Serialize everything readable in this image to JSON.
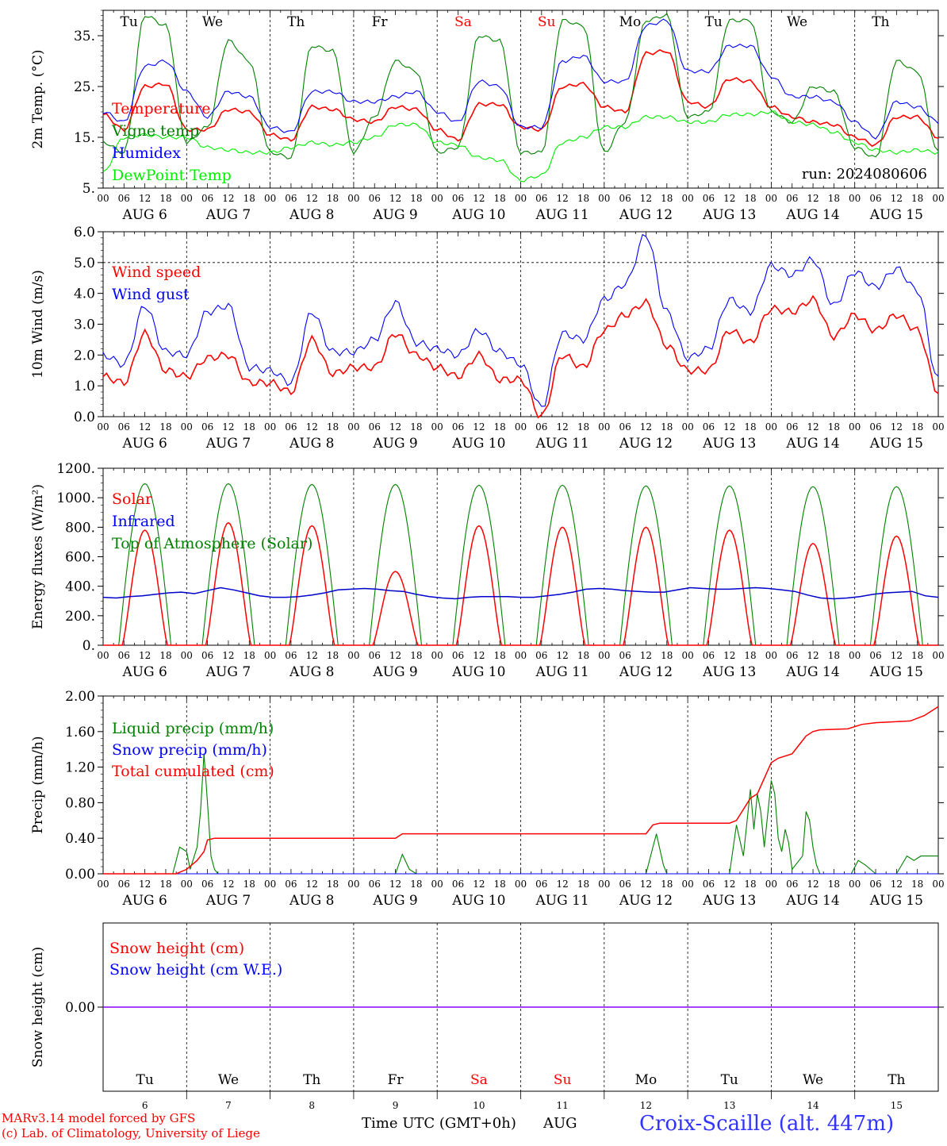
{
  "colors": {
    "red": "#ff0000",
    "green": "#008000",
    "blue": "#0000ff",
    "lightgreen": "#00ee00",
    "darkblue": "#0000cc",
    "purple": "#8b00ff",
    "tick": "#000000"
  },
  "days_top": [
    "Tu",
    "We",
    "Th",
    "Fr",
    "Sa",
    "Su",
    "Mo",
    "Tu",
    "We",
    "Th"
  ],
  "weekend_days": [
    "Sa",
    "Su"
  ],
  "date_labels": [
    "AUG 6",
    "AUG 7",
    "AUG 8",
    "AUG 9",
    "AUG 10",
    "AUG 11",
    "AUG 12",
    "AUG 13",
    "AUG 14",
    "AUG 15"
  ],
  "hour_ticks": [
    "00",
    "06",
    "12",
    "18"
  ],
  "bottom_day_numbers": [
    "6",
    "7",
    "8",
    "9",
    "10",
    "11",
    "12",
    "13",
    "14",
    "15"
  ],
  "footer": {
    "credit1": "MARv3.14 model forced by GFS",
    "credit2": "(c) Lab. of Climatology, University of Liege",
    "xlabel": "Time UTC (GMT+0h)",
    "month": "AUG",
    "station": "Croix-Scaille (alt. 447m)"
  },
  "chart_data": [
    {
      "type": "line",
      "ylabel": "2m Temp. (°C)",
      "ylim": [
        5,
        40
      ],
      "yticks": [
        "5.",
        "15.",
        "25.",
        "35."
      ],
      "ytick_values": [
        5,
        15,
        25,
        35
      ],
      "annotation": "run: 2024080606",
      "x_hours": [
        0,
        6,
        12,
        18,
        24,
        30,
        36,
        42,
        48,
        54,
        60,
        66,
        72,
        78,
        84,
        90,
        96,
        102,
        108,
        114,
        120,
        126,
        132,
        138,
        144,
        150,
        156,
        162,
        168,
        174,
        180,
        186,
        192,
        198,
        204,
        210,
        216,
        222,
        228,
        234,
        240
      ],
      "series": [
        {
          "name": "Temperature",
          "color": "red",
          "values": [
            19.5,
            16.5,
            25,
            25.5,
            16.5,
            16.5,
            20.5,
            20,
            15.5,
            14.5,
            21,
            20.5,
            18.5,
            18,
            21,
            20.5,
            16.5,
            14.5,
            21.5,
            21.5,
            17,
            16.5,
            25,
            25.5,
            21,
            20,
            31.5,
            32,
            22,
            21,
            26.5,
            26,
            21,
            19,
            18,
            17.5,
            15,
            13.5,
            19,
            19,
            15
          ]
        },
        {
          "name": "Vigne temp",
          "color": "green",
          "values": [
            14,
            12,
            39,
            37,
            14,
            17,
            34,
            30,
            12,
            11,
            33,
            32,
            12,
            19,
            30,
            28,
            12,
            13,
            35,
            34,
            12,
            12,
            38,
            37,
            12,
            18,
            38,
            39,
            19,
            20,
            38,
            38,
            20,
            18,
            25,
            24,
            13,
            11,
            30,
            28,
            12
          ]
        },
        {
          "name": "Humidex",
          "color": "blue",
          "values": [
            20,
            18,
            29,
            30,
            24,
            19,
            24,
            23,
            17,
            16,
            24,
            24,
            22,
            22,
            23,
            24,
            20,
            18,
            26,
            25,
            17,
            17,
            30,
            31,
            26,
            26,
            37,
            38,
            28,
            28,
            33,
            33,
            27,
            23,
            23,
            22,
            18,
            15,
            22,
            21,
            18
          ]
        },
        {
          "name": "DewPoint Temp",
          "color": "lightgreen",
          "values": [
            8,
            15,
            15.5,
            15,
            15,
            13,
            12.5,
            12,
            12,
            13,
            14,
            13.5,
            14,
            15,
            17.5,
            17.5,
            14,
            13.5,
            11,
            10.5,
            6.5,
            7.5,
            14,
            15,
            17,
            17,
            19,
            19,
            18,
            18,
            19.5,
            19.5,
            20,
            18,
            17.5,
            16,
            14,
            12.5,
            12,
            12.5,
            12
          ]
        }
      ]
    },
    {
      "type": "line",
      "ylabel": "10m Wind (m/s)",
      "ylim": [
        0,
        6
      ],
      "yticks": [
        "0.0",
        "1.0",
        "2.0",
        "3.0",
        "4.0",
        "5.0",
        "6.0"
      ],
      "ytick_values": [
        0,
        1,
        2,
        3,
        4,
        5,
        6
      ],
      "x_hours": [
        0,
        6,
        12,
        18,
        24,
        30,
        36,
        42,
        48,
        54,
        60,
        66,
        72,
        78,
        84,
        90,
        96,
        102,
        108,
        114,
        120,
        126,
        132,
        138,
        144,
        150,
        156,
        162,
        168,
        174,
        180,
        186,
        192,
        198,
        204,
        210,
        216,
        222,
        228,
        234,
        240
      ],
      "series": [
        {
          "name": "Wind speed",
          "color": "red",
          "values": [
            1.3,
            1.1,
            2.7,
            1.5,
            1.3,
            1.9,
            2.0,
            1.1,
            1.1,
            0.8,
            2.5,
            1.4,
            1.6,
            1.6,
            2.7,
            2.0,
            1.6,
            1.3,
            2.0,
            1.2,
            1.2,
            0.0,
            2.0,
            1.6,
            2.8,
            3.3,
            3.7,
            2.3,
            1.5,
            1.5,
            2.8,
            2.4,
            3.5,
            3.4,
            3.8,
            2.6,
            3.3,
            2.8,
            3.3,
            2.8,
            0.8
          ]
        },
        {
          "name": "Wind gust",
          "color": "blue",
          "values": [
            2.0,
            1.7,
            3.6,
            2.1,
            2.0,
            3.4,
            3.6,
            1.6,
            1.5,
            1.1,
            3.4,
            2.1,
            2.1,
            2.5,
            3.7,
            2.4,
            2.2,
            2.0,
            2.8,
            2.1,
            1.7,
            0.3,
            2.7,
            2.5,
            3.8,
            4.3,
            5.9,
            3.4,
            1.9,
            2.2,
            3.8,
            3.4,
            4.9,
            4.6,
            5.1,
            3.6,
            4.7,
            4.2,
            4.8,
            4.1,
            1.2
          ]
        }
      ]
    },
    {
      "type": "line",
      "ylabel": "Energy fluxes (W/m²)",
      "ylim": [
        0,
        1200
      ],
      "yticks": [
        "0.",
        "200.",
        "400.",
        "600.",
        "800.",
        "1000.",
        "1200."
      ],
      "ytick_values": [
        0,
        200,
        400,
        600,
        800,
        1000,
        1200
      ],
      "day_peaks": {
        "top_of_atmosphere": [
          1095,
          1095,
          1090,
          1090,
          1085,
          1085,
          1080,
          1080,
          1075,
          1075
        ],
        "solar": [
          780,
          830,
          810,
          500,
          810,
          800,
          800,
          780,
          690,
          740
        ]
      },
      "infrared_hourly_3h": [
        325,
        320,
        330,
        335,
        345,
        355,
        360,
        350,
        370,
        390,
        375,
        355,
        335,
        325,
        325,
        330,
        340,
        355,
        375,
        380,
        385,
        380,
        370,
        365,
        345,
        330,
        320,
        315,
        325,
        330,
        330,
        330,
        325,
        325,
        335,
        345,
        360,
        380,
        385,
        380,
        370,
        365,
        360,
        360,
        375,
        390,
        385,
        380,
        380,
        385,
        390,
        385,
        375,
        365,
        340,
        320,
        315,
        320,
        330,
        345,
        355,
        360,
        365,
        335,
        325
      ],
      "series": [
        {
          "name": "Solar",
          "color": "red"
        },
        {
          "name": "Infrared",
          "color": "blue"
        },
        {
          "name": "Top of Atmosphere (Solar)",
          "color": "green"
        }
      ]
    },
    {
      "type": "line",
      "ylabel": "Precip (mm/h)",
      "ylim": [
        0,
        2
      ],
      "yticks": [
        "0.00",
        "0.40",
        "0.80",
        "1.20",
        "1.60",
        "2.00"
      ],
      "ytick_values": [
        0,
        0.4,
        0.8,
        1.2,
        1.6,
        2.0
      ],
      "series": [
        {
          "name": "Liquid precip (mm/h)",
          "color": "green",
          "points": [
            [
              0,
              0
            ],
            [
              20,
              0
            ],
            [
              22,
              0.3
            ],
            [
              24,
              0.25
            ],
            [
              25,
              0.05
            ],
            [
              27,
              0.3
            ],
            [
              28,
              0.7
            ],
            [
              29,
              1.35
            ],
            [
              30,
              0.8
            ],
            [
              31,
              0.2
            ],
            [
              32,
              0.05
            ],
            [
              33,
              0
            ],
            [
              84,
              0
            ],
            [
              86,
              0.22
            ],
            [
              88,
              0.05
            ],
            [
              90,
              0
            ],
            [
              156,
              0
            ],
            [
              158,
              0.3
            ],
            [
              159,
              0.45
            ],
            [
              161,
              0.1
            ],
            [
              162,
              0
            ],
            [
              180,
              0
            ],
            [
              182,
              0.55
            ],
            [
              184,
              0.2
            ],
            [
              186,
              0.95
            ],
            [
              187,
              0.5
            ],
            [
              188,
              0.9
            ],
            [
              189,
              0.7
            ],
            [
              190,
              0.3
            ],
            [
              192,
              1.05
            ],
            [
              193,
              0.9
            ],
            [
              194,
              0.4
            ],
            [
              195,
              0.25
            ],
            [
              196,
              0.5
            ],
            [
              197,
              0.35
            ],
            [
              198,
              0.05
            ],
            [
              199,
              0.1
            ],
            [
              200,
              0.15
            ],
            [
              201,
              0.2
            ],
            [
              202,
              0.7
            ],
            [
              203,
              0.6
            ],
            [
              204,
              0.3
            ],
            [
              205,
              0.1
            ],
            [
              206,
              0
            ],
            [
              215,
              0
            ],
            [
              217,
              0.15
            ],
            [
              219,
              0.1
            ],
            [
              222,
              0
            ],
            [
              228,
              0
            ],
            [
              231,
              0.2
            ],
            [
              233,
              0.15
            ],
            [
              235,
              0.2
            ],
            [
              237,
              0.2
            ],
            [
              240,
              0.2
            ]
          ]
        },
        {
          "name": "Snow precip (mm/h)",
          "color": "blue",
          "points": [
            [
              0,
              0
            ],
            [
              240,
              0
            ]
          ]
        },
        {
          "name": "Total cumulated (cm)",
          "color": "red",
          "points": [
            [
              0,
              0
            ],
            [
              21,
              0
            ],
            [
              24,
              0.05
            ],
            [
              27,
              0.15
            ],
            [
              29,
              0.25
            ],
            [
              30,
              0.38
            ],
            [
              32,
              0.4
            ],
            [
              84,
              0.4
            ],
            [
              86,
              0.45
            ],
            [
              156,
              0.45
            ],
            [
              158,
              0.55
            ],
            [
              160,
              0.57
            ],
            [
              180,
              0.57
            ],
            [
              182,
              0.6
            ],
            [
              186,
              0.85
            ],
            [
              188,
              0.9
            ],
            [
              192,
              1.25
            ],
            [
              194,
              1.3
            ],
            [
              198,
              1.35
            ],
            [
              200,
              1.45
            ],
            [
              202,
              1.55
            ],
            [
              204,
              1.6
            ],
            [
              206,
              1.62
            ],
            [
              214,
              1.63
            ],
            [
              218,
              1.68
            ],
            [
              222,
              1.7
            ],
            [
              232,
              1.72
            ],
            [
              236,
              1.78
            ],
            [
              240,
              1.88
            ]
          ]
        }
      ]
    },
    {
      "type": "line",
      "ylabel": "Snow height (cm)",
      "yticks": [
        "0.00"
      ],
      "ytick_values": [
        0
      ],
      "ylim": [
        -1,
        1
      ],
      "series": [
        {
          "name": "Snow height (cm)",
          "color": "red",
          "values": [
            0,
            0
          ]
        },
        {
          "name": "Snow height (cm W.E.)",
          "color": "blue",
          "values": [
            0,
            0
          ]
        }
      ]
    }
  ]
}
